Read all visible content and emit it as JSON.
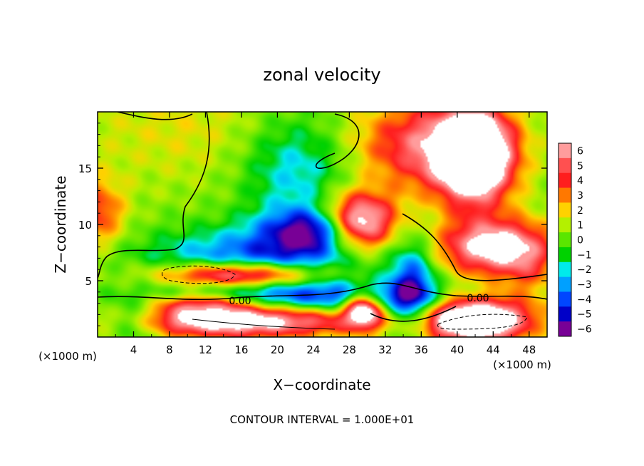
{
  "chart_data": {
    "type": "heatmap",
    "title": "zonal velocity",
    "xlabel": "X−coordinate",
    "ylabel": "Z−coordinate",
    "x_unit": "(×1000 m)",
    "y_unit": "(×1000 m)",
    "xlim": [
      0,
      50
    ],
    "ylim": [
      0,
      20
    ],
    "x_ticks": [
      4,
      8,
      12,
      16,
      20,
      24,
      28,
      32,
      36,
      40,
      44,
      48
    ],
    "y_ticks": [
      5,
      10,
      15
    ],
    "x_tick_labels": [
      "4",
      "8",
      "12",
      "16",
      "20",
      "24",
      "28",
      "32",
      "36",
      "40",
      "44",
      "48"
    ],
    "y_tick_labels": [
      "5",
      "10",
      "15"
    ],
    "footer": "CONTOUR INTERVAL = 1.000E+01",
    "contour_labels": [
      "0.00",
      "0.00"
    ],
    "colorbar": {
      "ticks": [
        6,
        5,
        4,
        3,
        2,
        1,
        0,
        -1,
        -2,
        -3,
        -4,
        -5,
        -6
      ],
      "tick_labels": [
        "6",
        "5",
        "4",
        "3",
        "2",
        "1",
        "0",
        "−1",
        "−2",
        "−3",
        "−4",
        "−5",
        "−6"
      ],
      "colors": [
        "#ff9c9c",
        "#ff5050",
        "#ff1e1e",
        "#ff7800",
        "#ffd200",
        "#b4f000",
        "#5ae600",
        "#00d200",
        "#00ebeb",
        "#00a0ff",
        "#0046ff",
        "#0000c8",
        "#780096"
      ],
      "above_max_color": "#ffffff"
    },
    "blobs": [
      {
        "x": 10,
        "z": 18.5,
        "sx": 14,
        "sz": 5,
        "v": 1.2
      },
      {
        "x": 0,
        "z": 11,
        "sx": 3,
        "sz": 3,
        "v": 3.5
      },
      {
        "x": 22,
        "z": 15,
        "sx": 6,
        "sz": 5,
        "v": -3
      },
      {
        "x": 25,
        "z": 9.5,
        "sx": 6,
        "sz": 2,
        "v": -6
      },
      {
        "x": 29,
        "z": 10,
        "sx": 4,
        "sz": 2.5,
        "v": 10
      },
      {
        "x": 16,
        "z": 5.5,
        "sx": 9,
        "sz": 1.2,
        "v": 9
      },
      {
        "x": 18,
        "z": 6.5,
        "sx": 12,
        "sz": 3,
        "v": -5
      },
      {
        "x": 25,
        "z": 3.5,
        "sx": 14,
        "sz": 1.5,
        "v": -4
      },
      {
        "x": 15,
        "z": 1.5,
        "sx": 14,
        "sz": 1.5,
        "v": 8
      },
      {
        "x": 4,
        "z": 1.5,
        "sx": 4,
        "sz": 1.8,
        "v": -4
      },
      {
        "x": 42,
        "z": 16,
        "sx": 4,
        "sz": 4,
        "v": 10
      },
      {
        "x": 37,
        "z": 17,
        "sx": 8,
        "sz": 4,
        "v": 5
      },
      {
        "x": 44,
        "z": 8,
        "sx": 6,
        "sz": 2.5,
        "v": 7
      },
      {
        "x": 42,
        "z": 1.5,
        "sx": 6,
        "sz": 2,
        "v": 10
      },
      {
        "x": 35,
        "z": 4,
        "sx": 2.5,
        "sz": 4,
        "v": -5
      },
      {
        "x": 29.5,
        "z": 2.5,
        "sx": 2,
        "sz": 1.5,
        "v": 8
      },
      {
        "x": 48,
        "z": 6,
        "sx": 3,
        "sz": 3,
        "v": 2
      },
      {
        "x": 12,
        "z": 3,
        "sx": 6,
        "sz": 1,
        "v": 4
      }
    ]
  }
}
